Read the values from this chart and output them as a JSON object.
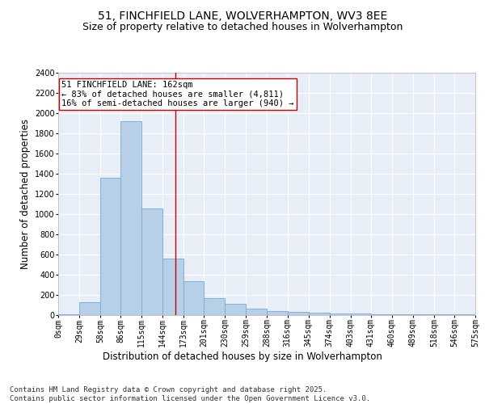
{
  "title_line1": "51, FINCHFIELD LANE, WOLVERHAMPTON, WV3 8EE",
  "title_line2": "Size of property relative to detached houses in Wolverhampton",
  "xlabel": "Distribution of detached houses by size in Wolverhampton",
  "ylabel": "Number of detached properties",
  "bar_color": "#b8cfe8",
  "bar_edge_color": "#7aaad0",
  "background_color": "#e8eef8",
  "grid_color": "#ffffff",
  "annotation_text": "51 FINCHFIELD LANE: 162sqm\n← 83% of detached houses are smaller (4,811)\n16% of semi-detached houses are larger (940) →",
  "vline_x": 162,
  "vline_color": "#cc0000",
  "annotation_box_facecolor": "#ffffff",
  "annotation_box_edgecolor": "#cc0000",
  "bin_edges": [
    0,
    29,
    58,
    86,
    115,
    144,
    173,
    201,
    230,
    259,
    288,
    316,
    345,
    374,
    403,
    431,
    460,
    489,
    518,
    546,
    575
  ],
  "bin_labels": [
    "0sqm",
    "29sqm",
    "58sqm",
    "86sqm",
    "115sqm",
    "144sqm",
    "173sqm",
    "201sqm",
    "230sqm",
    "259sqm",
    "288sqm",
    "316sqm",
    "345sqm",
    "374sqm",
    "403sqm",
    "431sqm",
    "460sqm",
    "489sqm",
    "518sqm",
    "546sqm",
    "575sqm"
  ],
  "bar_heights": [
    10,
    125,
    1360,
    1920,
    1055,
    560,
    335,
    170,
    115,
    65,
    40,
    30,
    25,
    20,
    15,
    5,
    5,
    5,
    5,
    10
  ],
  "ylim": [
    0,
    2400
  ],
  "yticks": [
    0,
    200,
    400,
    600,
    800,
    1000,
    1200,
    1400,
    1600,
    1800,
    2000,
    2200,
    2400
  ],
  "footer_text": "Contains HM Land Registry data © Crown copyright and database right 2025.\nContains public sector information licensed under the Open Government Licence v3.0.",
  "title_fontsize": 10,
  "subtitle_fontsize": 9,
  "axis_label_fontsize": 8.5,
  "tick_fontsize": 7,
  "annotation_fontsize": 7.5,
  "footer_fontsize": 6.5
}
